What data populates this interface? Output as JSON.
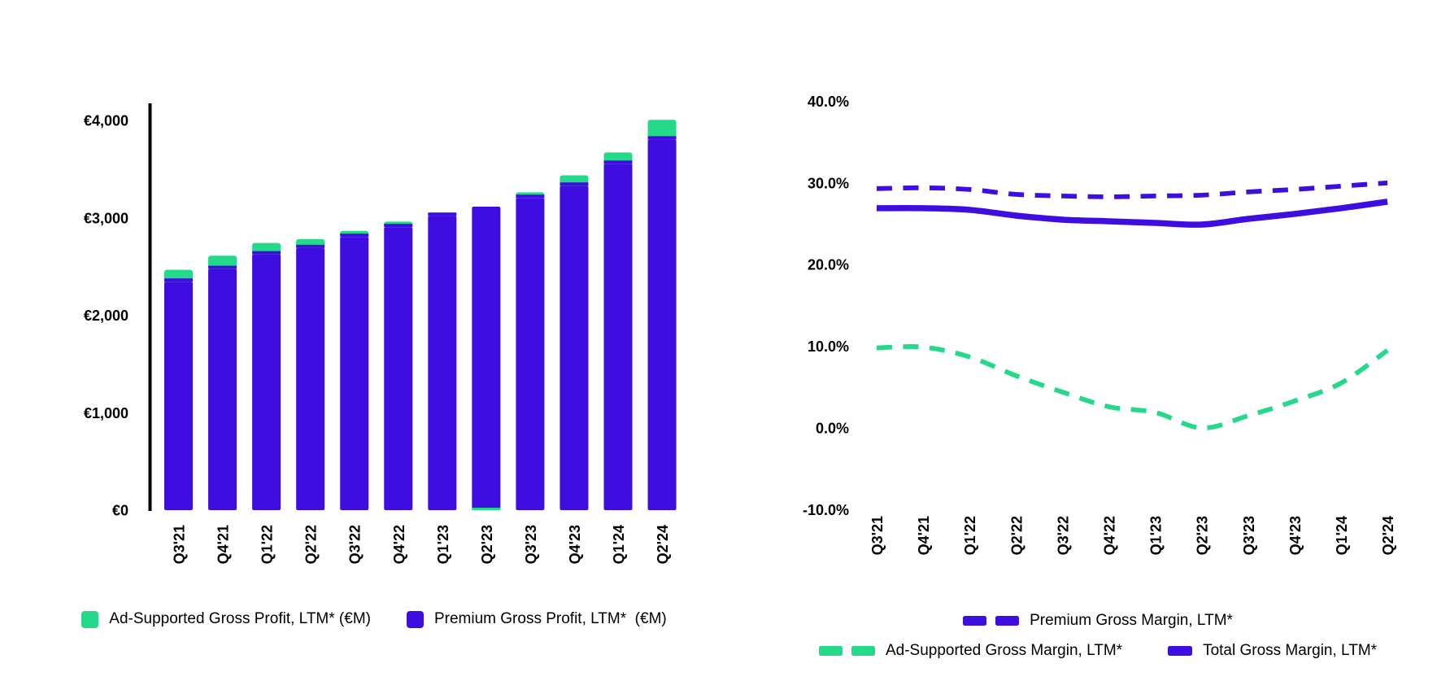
{
  "colors": {
    "purple": "#3E0EE0",
    "green": "#24D98A",
    "text": "#000000",
    "axis": "#000000",
    "background": "#FFFFFF"
  },
  "categories": [
    "Q3'21",
    "Q4'21",
    "Q1'22",
    "Q2'22",
    "Q3'22",
    "Q4'22",
    "Q1'23",
    "Q2'23",
    "Q3'23",
    "Q4'23",
    "Q1'24",
    "Q2'24"
  ],
  "chart_data": [
    {
      "id": "gross-profit-stacked-bars",
      "type": "bar",
      "stacked": true,
      "title": "",
      "xlabel": "",
      "ylabel": "",
      "categories": [
        "Q3'21",
        "Q4'21",
        "Q1'22",
        "Q2'22",
        "Q3'22",
        "Q4'22",
        "Q1'23",
        "Q2'23",
        "Q3'23",
        "Q4'23",
        "Q1'24",
        "Q2'24"
      ],
      "series": [
        {
          "name": "Premium Gross Profit, LTM*  (€M)",
          "color": "purple",
          "values": [
            2345,
            2475,
            2625,
            2690,
            2805,
            2905,
            3020,
            3115,
            3205,
            3330,
            3555,
            3805
          ]
        },
        {
          "name": "Ad-Supported Gross Profit, LTM* (€M)",
          "color": "green",
          "values": [
            105,
            120,
            100,
            75,
            45,
            40,
            20,
            -2,
            40,
            90,
            100,
            185
          ]
        }
      ],
      "ylim": [
        0,
        4000
      ],
      "yticks": [
        {
          "value": 4000,
          "label": "€4,000"
        },
        {
          "value": 3000,
          "label": "€3,000"
        },
        {
          "value": 2000,
          "label": "€2,000"
        },
        {
          "value": 1000,
          "label": "€1,000"
        },
        {
          "value": 0,
          "label": "€0"
        }
      ],
      "grid": false,
      "legend_position": "bottom"
    },
    {
      "id": "gross-margin-lines",
      "type": "line",
      "title": "",
      "xlabel": "",
      "ylabel": "",
      "categories": [
        "Q3'21",
        "Q4'21",
        "Q1'22",
        "Q2'22",
        "Q3'22",
        "Q4'22",
        "Q1'23",
        "Q2'23",
        "Q3'23",
        "Q4'23",
        "Q1'24",
        "Q2'24"
      ],
      "series": [
        {
          "name": "Premium Gross Margin, LTM*",
          "color": "purple",
          "style": "dashed",
          "values": [
            29.3,
            29.4,
            29.2,
            28.6,
            28.4,
            28.3,
            28.4,
            28.5,
            28.9,
            29.2,
            29.6,
            30.0
          ]
        },
        {
          "name": "Ad-Supported Gross Margin, LTM*",
          "color": "green",
          "style": "dashed",
          "values": [
            9.8,
            9.9,
            8.7,
            6.4,
            4.4,
            2.6,
            1.9,
            0.0,
            1.5,
            3.3,
            5.5,
            9.5
          ]
        },
        {
          "name": "Total Gross Margin, LTM*",
          "color": "purple",
          "style": "solid",
          "values": [
            26.9,
            26.9,
            26.7,
            26.0,
            25.5,
            25.3,
            25.1,
            24.9,
            25.6,
            26.2,
            26.9,
            27.7
          ]
        }
      ],
      "ylim": [
        -10,
        40
      ],
      "yticks": [
        {
          "value": 40,
          "label": "40.0%"
        },
        {
          "value": 30,
          "label": "30.0%"
        },
        {
          "value": 20,
          "label": "20.0%"
        },
        {
          "value": 10,
          "label": "10.0%"
        },
        {
          "value": 0,
          "label": "0.0%"
        },
        {
          "value": -10,
          "label": "-10.0%"
        }
      ],
      "grid": false,
      "legend_position": "bottom"
    }
  ]
}
